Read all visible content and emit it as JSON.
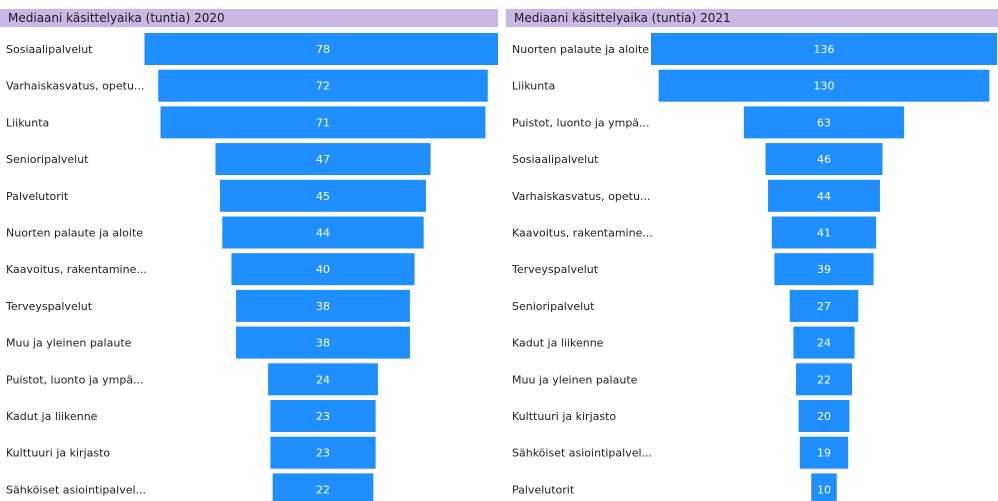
{
  "colors": {
    "bar": "#1f8fff",
    "title_band": "#c9b8e6"
  },
  "chart_data": [
    {
      "type": "bar",
      "orientation": "horizontal-funnel",
      "title": "Mediaani käsittelyaika (tuntia) 2020",
      "categories": [
        "Sosiaalipalvelut",
        "Varhaiskasvatus, opetu...",
        "Liikunta",
        "Senioripalvelut",
        "Palvelutorit",
        "Nuorten palaute ja aloite",
        "Kaavoitus, rakentamine...",
        "Terveyspalvelut",
        "Muu ja yleinen palaute",
        "Puistot, luonto ja ympä...",
        "Kadut ja liikenne",
        "Kulttuuri ja kirjasto",
        "Sähköiset asiointipalvel..."
      ],
      "values": [
        78,
        72,
        71,
        47,
        45,
        44,
        40,
        38,
        38,
        24,
        23,
        23,
        22
      ],
      "value_labels": [
        "78",
        "72",
        "71",
        "47",
        "45",
        "44",
        "40",
        "38",
        "38",
        "24",
        "23",
        "23",
        "22"
      ]
    },
    {
      "type": "bar",
      "orientation": "horizontal-funnel",
      "title": "Mediaani käsittelyaika (tuntia) 2021",
      "categories": [
        "Nuorten palaute ja aloite",
        "Liikunta",
        "Puistot, luonto ja ympä...",
        "Sosiaalipalvelut",
        "Varhaiskasvatus, opetu...",
        "Kaavoitus, rakentamine...",
        "Terveyspalvelut",
        "Senioripalvelut",
        "Kadut ja liikenne",
        "Muu ja yleinen palaute",
        "Kulttuuri ja kirjasto",
        "Sähköiset asiointipalvel...",
        "Palvelutorit"
      ],
      "values": [
        136,
        130,
        63,
        46,
        44,
        41,
        39,
        27,
        24,
        22,
        20,
        19,
        10
      ],
      "value_labels": [
        "136",
        "130",
        "63",
        "46",
        "44",
        "41",
        "39",
        "27",
        "24",
        "22",
        "20",
        "19",
        "10"
      ]
    }
  ]
}
